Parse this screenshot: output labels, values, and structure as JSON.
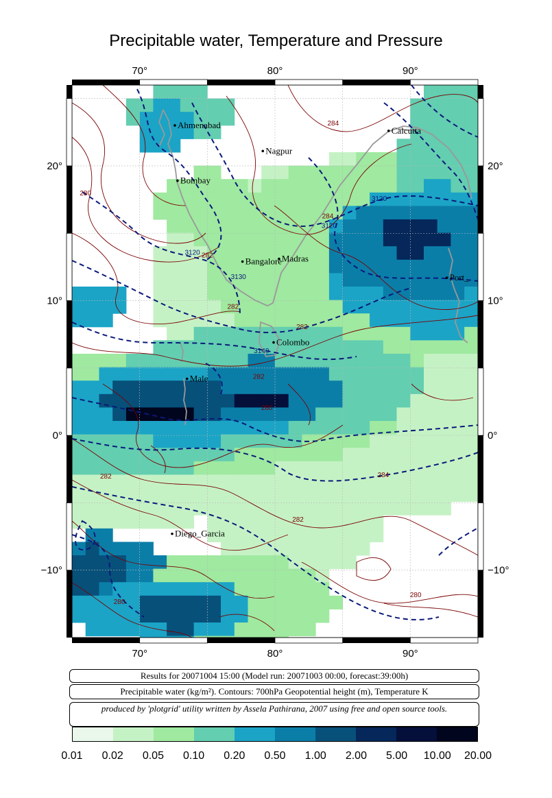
{
  "title": "Precipitable water, Temperature and Pressure",
  "map": {
    "lon_range": [
      65,
      95
    ],
    "lat_range": [
      -15,
      26
    ],
    "lon_ticks": [
      {
        "value": 70,
        "label": "70°"
      },
      {
        "value": 80,
        "label": "80°"
      },
      {
        "value": 90,
        "label": "90°"
      }
    ],
    "lat_ticks": [
      {
        "value": 20,
        "label": "20°"
      },
      {
        "value": 10,
        "label": "10°"
      },
      {
        "value": 0,
        "label": "0°"
      },
      {
        "value": -10,
        "label": "−10°"
      }
    ],
    "cities": [
      {
        "name": "Ahmenabad",
        "lon": 72.6,
        "lat": 23.0
      },
      {
        "name": "Nagpur",
        "lon": 79.1,
        "lat": 21.1
      },
      {
        "name": "Calcutta",
        "lon": 88.4,
        "lat": 22.6
      },
      {
        "name": "Bombay",
        "lon": 72.8,
        "lat": 18.9
      },
      {
        "name": "Bangalore",
        "lon": 77.6,
        "lat": 12.9
      },
      {
        "name": "Madras",
        "lon": 80.3,
        "lat": 13.1
      },
      {
        "name": "Port_",
        "lon": 92.7,
        "lat": 11.7
      },
      {
        "name": "Colombo",
        "lon": 79.9,
        "lat": 6.9
      },
      {
        "name": "Male",
        "lon": 73.5,
        "lat": 4.2
      },
      {
        "name": "Diego_Garcia",
        "lon": 72.4,
        "lat": -7.3
      }
    ],
    "height_contour_labels": [
      {
        "text": "3120",
        "lon": 87.7,
        "lat": 17.4
      },
      {
        "text": "3120",
        "lon": 84.0,
        "lat": 15.4
      },
      {
        "text": "3120",
        "lon": 73.9,
        "lat": 13.4
      },
      {
        "text": "3130",
        "lon": 77.3,
        "lat": 11.6
      },
      {
        "text": "3140",
        "lon": 79.0,
        "lat": 6.1
      }
    ],
    "temp_contour_labels": [
      {
        "text": "284",
        "lon": 84.3,
        "lat": 23.0
      },
      {
        "text": "284",
        "lon": 83.9,
        "lat": 16.1
      },
      {
        "text": "282",
        "lon": 75.0,
        "lat": 13.2
      },
      {
        "text": "280",
        "lon": 66.0,
        "lat": 17.8
      },
      {
        "text": "282",
        "lon": 76.9,
        "lat": 9.4
      },
      {
        "text": "282",
        "lon": 82.0,
        "lat": 7.9
      },
      {
        "text": "282",
        "lon": 78.8,
        "lat": 4.2
      },
      {
        "text": "282",
        "lon": 67.5,
        "lat": -3.2
      },
      {
        "text": "280",
        "lon": 79.4,
        "lat": 1.9
      },
      {
        "text": "284",
        "lon": 88.0,
        "lat": -3.1
      },
      {
        "text": "282",
        "lon": 81.7,
        "lat": -6.4
      },
      {
        "text": "280",
        "lon": 68.5,
        "lat": -12.5
      },
      {
        "text": "280",
        "lon": 90.4,
        "lat": -12.0
      }
    ]
  },
  "info": {
    "results": "Results for 20071004 15:00 (Model run: 20071003 00:00, forecast:39:00h)",
    "legend_text": "Precipitable water (kg/m²).  Contours: 700hPa Geopotential height (m), Temperature K",
    "credit": "produced by 'plotgrid' utility written by Assela Pathirana, 2007 using free and open source tools."
  },
  "colorbar": {
    "labels": [
      "0.01",
      "0.02",
      "0.05",
      "0.10",
      "0.20",
      "0.50",
      "1.00",
      "2.00",
      "5.00",
      "10.00",
      "20.00"
    ],
    "colors": [
      "#e9f8ea",
      "#c5f2c5",
      "#9fe9a0",
      "#63ceb0",
      "#1ba4c6",
      "#0b7ea8",
      "#07507a",
      "#05275a",
      "#040f3a",
      "#02051e"
    ]
  }
}
